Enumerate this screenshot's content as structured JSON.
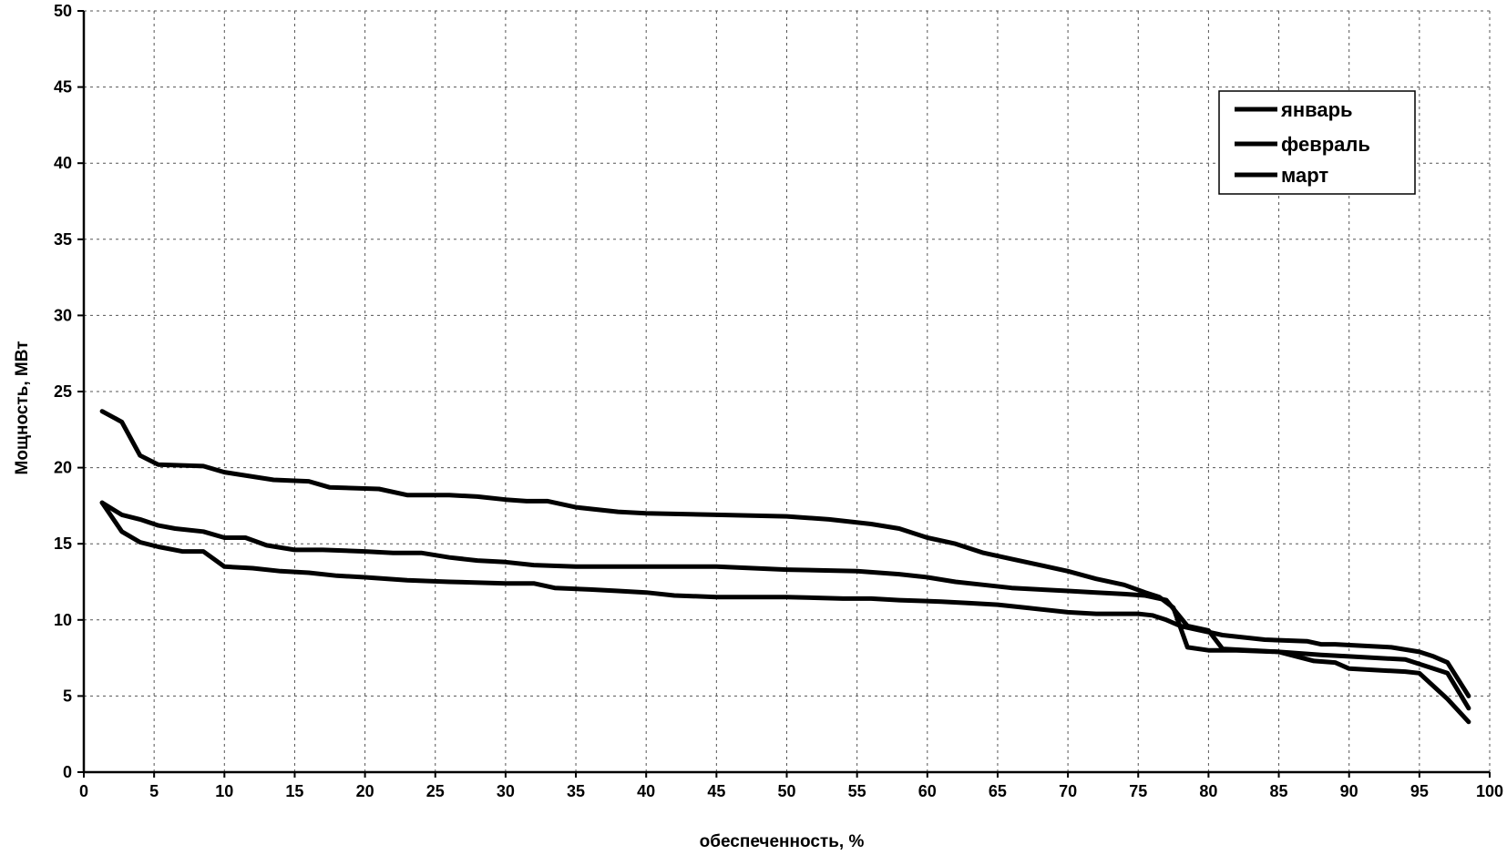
{
  "chart_data": {
    "type": "line",
    "title": "",
    "xlabel": "обеспеченность, %",
    "ylabel": "Мощность, МВт",
    "xlim": [
      0,
      100
    ],
    "ylim": [
      0,
      50
    ],
    "xticks": [
      0,
      5,
      10,
      15,
      20,
      25,
      30,
      35,
      40,
      45,
      50,
      55,
      60,
      65,
      70,
      75,
      80,
      85,
      90,
      95,
      100
    ],
    "yticks": [
      0,
      5,
      10,
      15,
      20,
      25,
      30,
      35,
      40,
      45,
      50
    ],
    "grid": true,
    "legend_position": "top-right",
    "line_color": "#000000",
    "series": [
      {
        "name": "январь",
        "x": [
          1.3,
          2.7,
          4,
          5.3,
          8.5,
          10,
          13.5,
          16,
          17.5,
          21,
          23,
          26,
          28,
          30,
          31.5,
          33,
          35,
          38,
          40,
          45,
          50,
          53,
          56,
          58,
          60,
          62,
          64,
          66,
          68,
          70,
          72,
          74,
          75.5,
          76.5,
          77.5,
          78.5,
          80,
          81,
          82,
          85,
          87.5,
          89,
          90,
          92,
          94,
          95,
          97,
          98.5
        ],
        "y": [
          23.7,
          23,
          20.8,
          20.2,
          20.1,
          19.7,
          19.2,
          19.1,
          18.7,
          18.6,
          18.2,
          18.2,
          18.1,
          17.9,
          17.8,
          17.8,
          17.4,
          17.1,
          17,
          16.9,
          16.8,
          16.6,
          16.3,
          16,
          15.4,
          15,
          14.4,
          14,
          13.6,
          13.2,
          12.7,
          12.3,
          11.8,
          11.5,
          10.8,
          8.2,
          8.0,
          8.0,
          8.0,
          7.9,
          7.3,
          7.2,
          6.8,
          6.7,
          6.6,
          6.5,
          4.8,
          3.3
        ]
      },
      {
        "name": "февраль",
        "x": [
          1.3,
          2.7,
          4,
          5.3,
          6.5,
          8.5,
          10,
          11.5,
          13,
          15,
          17,
          20,
          22,
          24,
          26,
          28,
          30,
          32,
          35,
          40,
          45,
          50,
          55,
          58,
          60,
          62,
          64,
          66,
          68,
          70,
          72,
          74,
          75.5,
          77,
          78.5,
          80,
          81,
          85,
          88,
          90,
          94,
          97,
          98.5
        ],
        "y": [
          17.7,
          16.9,
          16.6,
          16.2,
          16.0,
          15.8,
          15.4,
          15.4,
          14.9,
          14.6,
          14.6,
          14.5,
          14.4,
          14.4,
          14.1,
          13.9,
          13.8,
          13.6,
          13.5,
          13.5,
          13.5,
          13.3,
          13.2,
          13.0,
          12.8,
          12.5,
          12.3,
          12.1,
          12.0,
          11.9,
          11.8,
          11.7,
          11.6,
          11.3,
          9.6,
          9.3,
          8.1,
          7.9,
          7.7,
          7.6,
          7.4,
          6.5,
          4.2
        ]
      },
      {
        "name": "март",
        "x": [
          1.3,
          2.7,
          4,
          5.3,
          7,
          8.5,
          10,
          12,
          14,
          16,
          18,
          20,
          23,
          26,
          30,
          32,
          33.5,
          36,
          38,
          40,
          42,
          45,
          50,
          54,
          56,
          58,
          61,
          63,
          65,
          67,
          70,
          72,
          75,
          76,
          77,
          78,
          81,
          84,
          87,
          88,
          89,
          91,
          93,
          95,
          96,
          97,
          98.5
        ],
        "y": [
          17.7,
          15.8,
          15.1,
          14.8,
          14.5,
          14.5,
          13.5,
          13.4,
          13.2,
          13.1,
          12.9,
          12.8,
          12.6,
          12.5,
          12.4,
          12.4,
          12.1,
          12.0,
          11.9,
          11.8,
          11.6,
          11.5,
          11.5,
          11.4,
          11.4,
          11.3,
          11.2,
          11.1,
          11.0,
          10.8,
          10.5,
          10.4,
          10.4,
          10.3,
          10.0,
          9.6,
          9.0,
          8.7,
          8.6,
          8.4,
          8.4,
          8.3,
          8.2,
          7.9,
          7.6,
          7.2,
          5.0
        ]
      }
    ]
  }
}
